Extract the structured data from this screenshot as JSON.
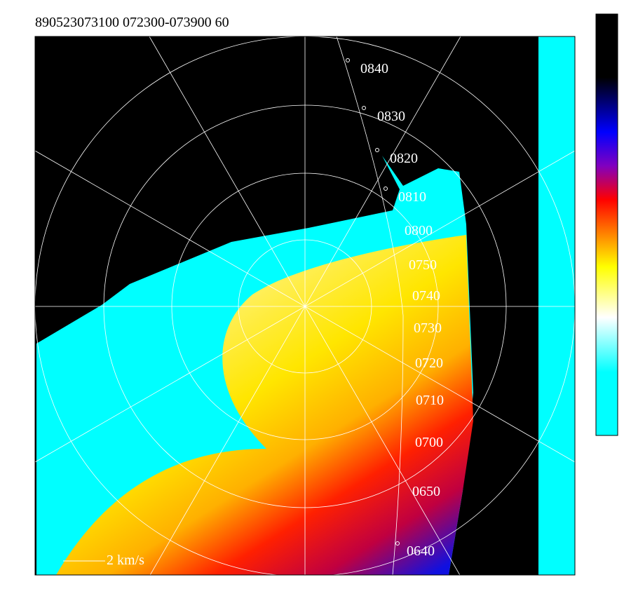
{
  "header": {
    "title": "890523073100  072300-073900   60"
  },
  "track": {
    "labels": [
      "0840",
      "0830",
      "0820",
      "0810",
      "0800",
      "0750",
      "0740",
      "0730",
      "0720",
      "0710",
      "0700",
      "0650",
      "0640"
    ]
  },
  "scale_label": "2 km/s"
}
